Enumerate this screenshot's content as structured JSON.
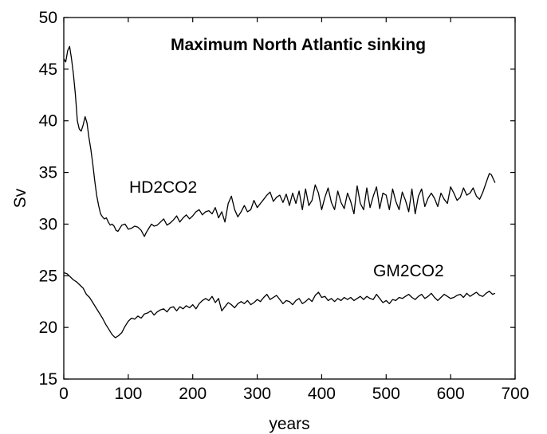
{
  "chart_data": {
    "type": "line",
    "title": "Maximum North Atlantic sinking",
    "xlabel": "years",
    "ylabel": "Sv",
    "xlim": [
      0,
      700
    ],
    "ylim": [
      15,
      50
    ],
    "xticks": [
      "0",
      "100",
      "200",
      "300",
      "400",
      "500",
      "600",
      "700"
    ],
    "yticks": [
      "15",
      "20",
      "25",
      "30",
      "35",
      "40",
      "45",
      "50"
    ],
    "grid": false,
    "legend": "none",
    "series": [
      {
        "name": "HD2CO2",
        "color": "#000000",
        "x": [
          0,
          3,
          6,
          9,
          12,
          15,
          18,
          21,
          24,
          27,
          30,
          33,
          36,
          39,
          42,
          45,
          48,
          51,
          54,
          57,
          60,
          63,
          66,
          69,
          72,
          75,
          78,
          81,
          84,
          87,
          90,
          95,
          100,
          105,
          110,
          115,
          120,
          125,
          128,
          132,
          136,
          140,
          145,
          150,
          155,
          160,
          165,
          170,
          175,
          180,
          185,
          190,
          195,
          200,
          205,
          210,
          215,
          220,
          225,
          230,
          235,
          240,
          245,
          250,
          255,
          260,
          265,
          270,
          275,
          280,
          285,
          290,
          295,
          300,
          305,
          310,
          315,
          320,
          325,
          330,
          335,
          340,
          345,
          350,
          355,
          360,
          365,
          370,
          375,
          380,
          385,
          390,
          395,
          400,
          405,
          410,
          415,
          420,
          425,
          430,
          435,
          440,
          445,
          450,
          455,
          460,
          465,
          470,
          475,
          480,
          485,
          490,
          495,
          500,
          505,
          510,
          515,
          520,
          525,
          530,
          535,
          540,
          545,
          550,
          555,
          560,
          565,
          570,
          575,
          580,
          585,
          590,
          595,
          600,
          605,
          610,
          615,
          620,
          625,
          630,
          635,
          640,
          645,
          650,
          655,
          660,
          663,
          666,
          669
        ],
        "values": [
          46.0,
          45.7,
          46.8,
          47.2,
          46.0,
          44.5,
          42.5,
          40.0,
          39.2,
          39.0,
          39.6,
          40.4,
          39.8,
          38.4,
          37.2,
          35.8,
          34.2,
          32.8,
          31.8,
          31.0,
          30.7,
          30.5,
          30.6,
          30.2,
          29.9,
          30.0,
          29.8,
          29.4,
          29.3,
          29.6,
          29.9,
          30.0,
          29.5,
          29.6,
          29.8,
          29.7,
          29.4,
          28.8,
          29.2,
          29.6,
          30.0,
          29.8,
          29.9,
          30.2,
          30.5,
          29.9,
          30.1,
          30.4,
          30.8,
          30.2,
          30.6,
          30.9,
          30.5,
          30.8,
          31.2,
          31.4,
          30.9,
          31.2,
          31.3,
          31.0,
          31.6,
          30.6,
          31.2,
          30.2,
          32.0,
          32.7,
          31.4,
          30.7,
          31.2,
          31.8,
          31.2,
          31.4,
          32.3,
          31.6,
          32.0,
          32.4,
          32.8,
          33.1,
          32.2,
          32.6,
          32.8,
          32.1,
          32.9,
          31.8,
          33.0,
          32.0,
          33.2,
          31.4,
          33.4,
          31.8,
          32.3,
          33.8,
          33.0,
          31.4,
          32.6,
          33.5,
          32.1,
          31.4,
          33.2,
          32.1,
          31.5,
          33.0,
          32.2,
          31.0,
          33.7,
          32.0,
          31.4,
          33.5,
          31.6,
          32.7,
          33.6,
          31.5,
          33.0,
          32.8,
          31.4,
          33.4,
          32.2,
          31.4,
          33.1,
          32.3,
          31.2,
          33.4,
          31.0,
          32.7,
          33.4,
          31.7,
          32.5,
          33.0,
          32.5,
          31.7,
          33.0,
          32.4,
          32.0,
          33.6,
          33.0,
          32.3,
          32.6,
          33.5,
          32.8,
          33.0,
          33.5,
          32.7,
          32.4,
          33.1,
          34.0,
          34.9,
          34.8,
          34.4,
          34.0
        ]
      },
      {
        "name": "GM2CO2",
        "color": "#000000",
        "x": [
          0,
          5,
          10,
          15,
          20,
          25,
          30,
          35,
          40,
          45,
          50,
          55,
          60,
          65,
          70,
          75,
          80,
          85,
          90,
          95,
          100,
          105,
          110,
          115,
          120,
          125,
          130,
          135,
          140,
          145,
          150,
          155,
          160,
          165,
          170,
          175,
          180,
          185,
          190,
          195,
          200,
          205,
          210,
          215,
          220,
          225,
          230,
          235,
          240,
          245,
          250,
          255,
          260,
          265,
          270,
          275,
          280,
          285,
          290,
          295,
          300,
          305,
          310,
          315,
          320,
          325,
          330,
          335,
          340,
          345,
          350,
          355,
          360,
          365,
          370,
          375,
          380,
          385,
          390,
          395,
          400,
          405,
          410,
          415,
          420,
          425,
          430,
          435,
          440,
          445,
          450,
          455,
          460,
          465,
          470,
          475,
          480,
          485,
          490,
          495,
          500,
          505,
          510,
          515,
          520,
          525,
          530,
          535,
          540,
          545,
          550,
          555,
          560,
          565,
          570,
          575,
          580,
          585,
          590,
          595,
          600,
          605,
          610,
          615,
          620,
          625,
          630,
          635,
          640,
          645,
          650,
          655,
          660,
          665,
          669
        ],
        "values": [
          25.3,
          25.2,
          24.9,
          24.6,
          24.4,
          24.1,
          23.8,
          23.2,
          22.9,
          22.4,
          21.9,
          21.4,
          20.9,
          20.3,
          19.8,
          19.3,
          19.0,
          19.2,
          19.5,
          20.1,
          20.6,
          20.9,
          20.8,
          21.1,
          20.9,
          21.3,
          21.4,
          21.6,
          21.2,
          21.5,
          21.7,
          21.8,
          21.5,
          21.9,
          22.0,
          21.6,
          22.0,
          21.8,
          22.1,
          21.9,
          22.2,
          21.8,
          22.3,
          22.6,
          22.8,
          22.6,
          23.0,
          22.4,
          22.8,
          21.6,
          22.0,
          22.4,
          22.2,
          21.9,
          22.3,
          22.5,
          22.3,
          22.6,
          22.2,
          22.4,
          22.7,
          22.5,
          22.9,
          23.2,
          22.7,
          22.9,
          23.1,
          22.7,
          22.3,
          22.6,
          22.5,
          22.2,
          22.6,
          22.8,
          22.3,
          22.5,
          22.8,
          22.5,
          23.1,
          23.4,
          22.9,
          23.0,
          22.6,
          22.8,
          22.5,
          22.8,
          22.6,
          22.9,
          22.7,
          22.9,
          22.6,
          22.8,
          23.0,
          22.7,
          23.0,
          22.8,
          22.7,
          23.2,
          22.8,
          22.4,
          22.6,
          22.3,
          22.7,
          22.6,
          22.9,
          22.8,
          23.0,
          23.2,
          22.9,
          22.7,
          23.0,
          23.2,
          22.8,
          23.0,
          23.3,
          22.9,
          22.6,
          22.9,
          23.2,
          23.0,
          22.8,
          22.9,
          23.1,
          23.2,
          22.9,
          23.3,
          23.0,
          23.2,
          23.4,
          23.1,
          23.0,
          23.3,
          23.5,
          23.2,
          23.3
        ]
      }
    ]
  }
}
